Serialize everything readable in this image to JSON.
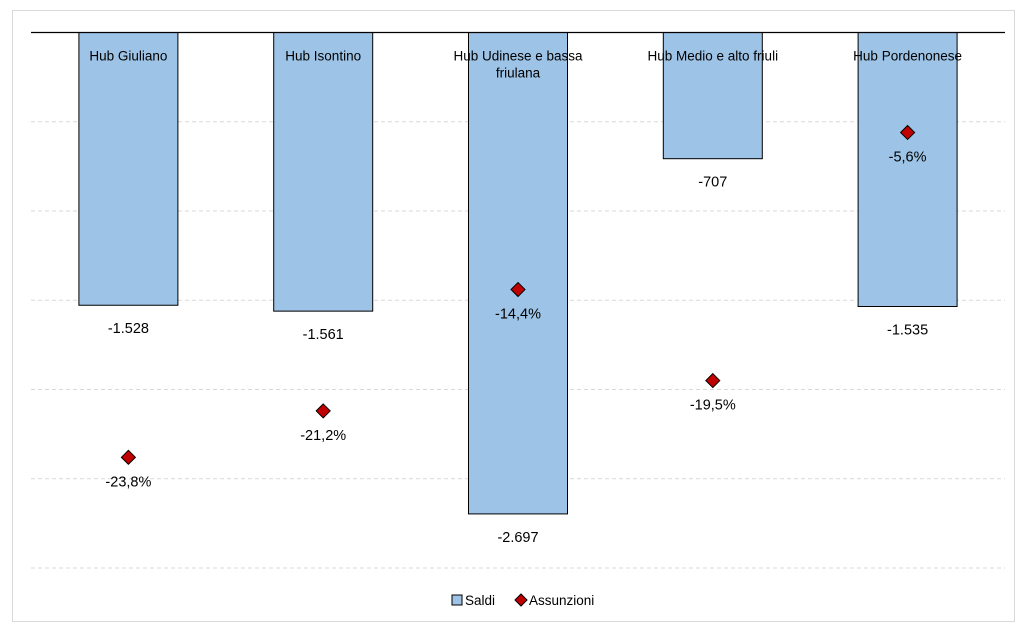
{
  "chart_data": {
    "type": "bar",
    "categories": [
      "Hub Giuliano",
      "Hub Isontino",
      "Hub Udinese e bassa friulana",
      "Hub Medio e alto friuli",
      "Hub Pordenonese"
    ],
    "category_lines": [
      [
        "Hub Giuliano"
      ],
      [
        "Hub Isontino"
      ],
      [
        "Hub Udinese e bassa",
        "friulana"
      ],
      [
        "Hub Medio e alto friuli"
      ],
      [
        "Hub Pordenonese"
      ]
    ],
    "series": [
      {
        "name": "Saldi",
        "chart_type": "bar",
        "axis": "primary",
        "values": [
          -1528,
          -1561,
          -2697,
          -707,
          -1535
        ],
        "labels": [
          "-1.528",
          "-1.561",
          "-2.697",
          "-707",
          "-1.535"
        ],
        "color": "#9dc3e6"
      },
      {
        "name": "Assunzioni",
        "chart_type": "scatter",
        "axis": "secondary",
        "marker": "diamond",
        "values": [
          -23.8,
          -21.2,
          -14.4,
          -19.5,
          -5.6
        ],
        "labels": [
          "-23,8%",
          "-21,2%",
          "-14,4%",
          "-19,5%",
          "-5,6%"
        ],
        "color": "#c00000"
      }
    ],
    "ylim_primary": [
      -3000,
      0
    ],
    "ylim_secondary": [
      -30,
      0
    ],
    "gridlines": 6,
    "grid": true,
    "legend_position": "bottom"
  }
}
